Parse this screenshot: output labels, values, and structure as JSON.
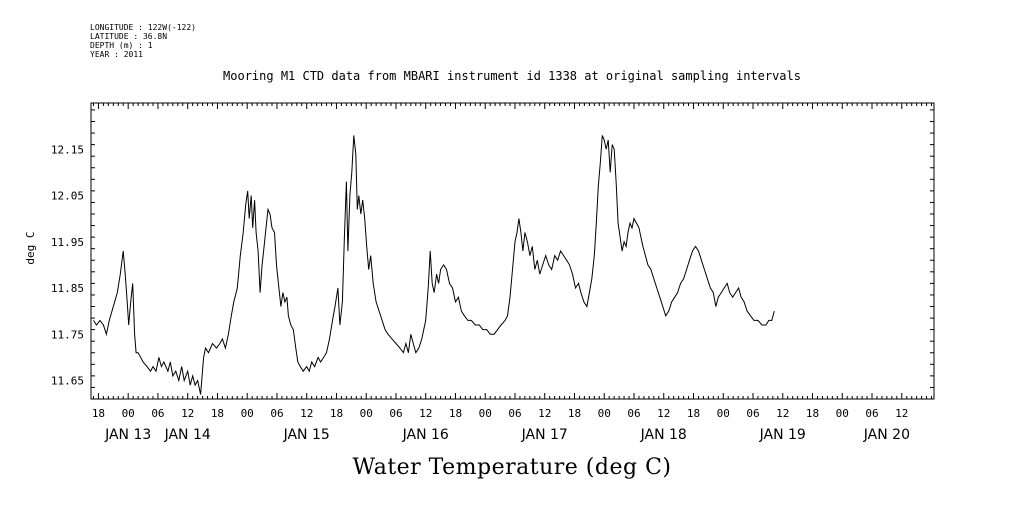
{
  "header": {
    "lines": [
      "LONGITUDE : 122W(-122)",
      "LATITUDE : 36.8N",
      "DEPTH (m) : 1",
      "YEAR : 2011"
    ]
  },
  "chart_data": {
    "type": "line",
    "title": "Mooring M1 CTD data from MBARI instrument id 1338 at original sampling intervals",
    "xlabel": "Water Temperature (deg C)",
    "ylabel": "deg C",
    "ylim": [
      11.61,
      12.25
    ],
    "yticks": [
      11.65,
      11.75,
      11.85,
      11.95,
      12.05,
      12.15
    ],
    "ytick_labels": [
      "11.65",
      "11.75",
      "11.85",
      "11.95",
      "12.05",
      "12.15"
    ],
    "x_unit": "hours since JAN 12 00:00 (2011)",
    "xlim": [
      16.5,
      186.5
    ],
    "hour_ticks": [
      {
        "h": 18,
        "label": "18"
      },
      {
        "h": 24,
        "label": "00"
      },
      {
        "h": 30,
        "label": "06"
      },
      {
        "h": 36,
        "label": "12"
      },
      {
        "h": 42,
        "label": "18"
      },
      {
        "h": 48,
        "label": "00"
      },
      {
        "h": 54,
        "label": "06"
      },
      {
        "h": 60,
        "label": "12"
      },
      {
        "h": 66,
        "label": "18"
      },
      {
        "h": 72,
        "label": "00"
      },
      {
        "h": 78,
        "label": "06"
      },
      {
        "h": 84,
        "label": "12"
      },
      {
        "h": 90,
        "label": "18"
      },
      {
        "h": 96,
        "label": "00"
      },
      {
        "h": 102,
        "label": "06"
      },
      {
        "h": 108,
        "label": "12"
      },
      {
        "h": 114,
        "label": "18"
      },
      {
        "h": 120,
        "label": "00"
      },
      {
        "h": 126,
        "label": "06"
      },
      {
        "h": 132,
        "label": "12"
      },
      {
        "h": 138,
        "label": "18"
      },
      {
        "h": 144,
        "label": "00"
      },
      {
        "h": 150,
        "label": "06"
      },
      {
        "h": 156,
        "label": "12"
      },
      {
        "h": 162,
        "label": "18"
      },
      {
        "h": 168,
        "label": "00"
      },
      {
        "h": 174,
        "label": "06"
      },
      {
        "h": 180,
        "label": "12"
      }
    ],
    "day_labels": [
      {
        "h": 24,
        "label": "JAN 13"
      },
      {
        "h": 36,
        "label": "JAN 14"
      },
      {
        "h": 60,
        "label": "JAN 15"
      },
      {
        "h": 84,
        "label": "JAN 16"
      },
      {
        "h": 108,
        "label": "JAN 17"
      },
      {
        "h": 132,
        "label": "JAN 18"
      },
      {
        "h": 156,
        "label": "JAN 19"
      },
      {
        "h": 177,
        "label": "JAN 20"
      }
    ],
    "grid": false,
    "series": [
      {
        "points": [
          [
            17.0,
            11.78
          ],
          [
            17.6,
            11.77
          ],
          [
            18.3,
            11.78
          ],
          [
            19.0,
            11.77
          ],
          [
            19.6,
            11.75
          ],
          [
            20.2,
            11.78
          ],
          [
            21.0,
            11.81
          ],
          [
            21.8,
            11.84
          ],
          [
            22.4,
            11.88
          ],
          [
            23.0,
            11.93
          ],
          [
            23.4,
            11.88
          ],
          [
            23.8,
            11.82
          ],
          [
            24.1,
            11.77
          ],
          [
            24.5,
            11.82
          ],
          [
            24.9,
            11.86
          ],
          [
            25.3,
            11.75
          ],
          [
            25.6,
            11.71
          ],
          [
            26.0,
            11.71
          ],
          [
            27.0,
            11.69
          ],
          [
            27.8,
            11.68
          ],
          [
            28.5,
            11.67
          ],
          [
            29.0,
            11.68
          ],
          [
            29.6,
            11.67
          ],
          [
            30.2,
            11.7
          ],
          [
            30.7,
            11.68
          ],
          [
            31.2,
            11.69
          ],
          [
            32.0,
            11.67
          ],
          [
            32.5,
            11.69
          ],
          [
            33.0,
            11.66
          ],
          [
            33.6,
            11.67
          ],
          [
            34.2,
            11.65
          ],
          [
            34.8,
            11.68
          ],
          [
            35.3,
            11.65
          ],
          [
            36.0,
            11.67
          ],
          [
            36.5,
            11.64
          ],
          [
            37.0,
            11.66
          ],
          [
            37.5,
            11.64
          ],
          [
            38.0,
            11.65
          ],
          [
            38.6,
            11.62
          ],
          [
            39.2,
            11.7
          ],
          [
            39.6,
            11.72
          ],
          [
            40.2,
            11.71
          ],
          [
            41.0,
            11.73
          ],
          [
            41.8,
            11.72
          ],
          [
            42.5,
            11.73
          ],
          [
            43.0,
            11.74
          ],
          [
            43.6,
            11.72
          ],
          [
            44.2,
            11.75
          ],
          [
            44.8,
            11.79
          ],
          [
            45.3,
            11.82
          ],
          [
            46.0,
            11.85
          ],
          [
            46.6,
            11.92
          ],
          [
            47.2,
            11.97
          ],
          [
            47.7,
            12.03
          ],
          [
            48.1,
            12.06
          ],
          [
            48.4,
            12.0
          ],
          [
            48.8,
            12.05
          ],
          [
            49.1,
            11.98
          ],
          [
            49.5,
            12.04
          ],
          [
            49.8,
            11.97
          ],
          [
            50.2,
            11.93
          ],
          [
            50.6,
            11.84
          ],
          [
            51.0,
            11.9
          ],
          [
            51.4,
            11.94
          ],
          [
            51.8,
            11.98
          ],
          [
            52.2,
            12.02
          ],
          [
            52.6,
            12.01
          ],
          [
            53.0,
            11.98
          ],
          [
            53.5,
            11.97
          ],
          [
            53.9,
            11.9
          ],
          [
            54.3,
            11.86
          ],
          [
            54.8,
            11.81
          ],
          [
            55.2,
            11.84
          ],
          [
            55.6,
            11.82
          ],
          [
            56.0,
            11.83
          ],
          [
            56.3,
            11.79
          ],
          [
            56.8,
            11.77
          ],
          [
            57.3,
            11.76
          ],
          [
            57.8,
            11.72
          ],
          [
            58.2,
            11.69
          ],
          [
            58.7,
            11.68
          ],
          [
            59.3,
            11.67
          ],
          [
            60.0,
            11.68
          ],
          [
            60.5,
            11.67
          ],
          [
            61.0,
            11.69
          ],
          [
            61.6,
            11.68
          ],
          [
            62.3,
            11.7
          ],
          [
            62.8,
            11.69
          ],
          [
            63.4,
            11.7
          ],
          [
            64.0,
            11.71
          ],
          [
            64.6,
            11.74
          ],
          [
            65.2,
            11.78
          ],
          [
            65.7,
            11.81
          ],
          [
            66.3,
            11.85
          ],
          [
            66.7,
            11.77
          ],
          [
            67.2,
            11.82
          ],
          [
            67.6,
            11.96
          ],
          [
            68.0,
            12.08
          ],
          [
            68.3,
            11.93
          ],
          [
            68.7,
            12.05
          ],
          [
            69.1,
            12.1
          ],
          [
            69.5,
            12.18
          ],
          [
            69.9,
            12.14
          ],
          [
            70.2,
            12.02
          ],
          [
            70.5,
            12.05
          ],
          [
            70.9,
            12.01
          ],
          [
            71.3,
            12.04
          ],
          [
            71.7,
            12.0
          ],
          [
            72.1,
            11.94
          ],
          [
            72.5,
            11.89
          ],
          [
            72.9,
            11.92
          ],
          [
            73.4,
            11.86
          ],
          [
            74.0,
            11.82
          ],
          [
            74.6,
            11.8
          ],
          [
            75.2,
            11.78
          ],
          [
            75.8,
            11.76
          ],
          [
            76.4,
            11.75
          ],
          [
            77.2,
            11.74
          ],
          [
            78.0,
            11.73
          ],
          [
            78.8,
            11.72
          ],
          [
            79.5,
            11.71
          ],
          [
            80.0,
            11.73
          ],
          [
            80.5,
            11.71
          ],
          [
            81.0,
            11.75
          ],
          [
            81.5,
            11.73
          ],
          [
            82.0,
            11.71
          ],
          [
            82.6,
            11.72
          ],
          [
            83.2,
            11.74
          ],
          [
            84.0,
            11.78
          ],
          [
            84.5,
            11.85
          ],
          [
            84.9,
            11.93
          ],
          [
            85.3,
            11.86
          ],
          [
            85.7,
            11.84
          ],
          [
            86.2,
            11.88
          ],
          [
            86.6,
            11.86
          ],
          [
            87.0,
            11.89
          ],
          [
            87.6,
            11.9
          ],
          [
            88.2,
            11.89
          ],
          [
            88.8,
            11.86
          ],
          [
            89.4,
            11.85
          ],
          [
            90.0,
            11.82
          ],
          [
            90.6,
            11.83
          ],
          [
            91.2,
            11.8
          ],
          [
            91.8,
            11.79
          ],
          [
            92.5,
            11.78
          ],
          [
            93.2,
            11.78
          ],
          [
            94.0,
            11.77
          ],
          [
            94.8,
            11.77
          ],
          [
            95.5,
            11.76
          ],
          [
            96.3,
            11.76
          ],
          [
            97.0,
            11.75
          ],
          [
            97.8,
            11.75
          ],
          [
            98.5,
            11.76
          ],
          [
            99.2,
            11.77
          ],
          [
            100.0,
            11.78
          ],
          [
            100.5,
            11.79
          ],
          [
            101.0,
            11.83
          ],
          [
            101.5,
            11.89
          ],
          [
            102.0,
            11.95
          ],
          [
            102.4,
            11.97
          ],
          [
            102.8,
            12.0
          ],
          [
            103.2,
            11.97
          ],
          [
            103.6,
            11.93
          ],
          [
            104.0,
            11.97
          ],
          [
            104.5,
            11.95
          ],
          [
            105.0,
            11.92
          ],
          [
            105.5,
            11.94
          ],
          [
            106.0,
            11.89
          ],
          [
            106.5,
            11.91
          ],
          [
            107.0,
            11.88
          ],
          [
            107.6,
            11.9
          ],
          [
            108.2,
            11.92
          ],
          [
            108.8,
            11.9
          ],
          [
            109.4,
            11.89
          ],
          [
            110.0,
            11.92
          ],
          [
            110.6,
            11.91
          ],
          [
            111.2,
            11.93
          ],
          [
            111.8,
            11.92
          ],
          [
            112.4,
            11.91
          ],
          [
            113.0,
            11.9
          ],
          [
            113.6,
            11.88
          ],
          [
            114.2,
            11.85
          ],
          [
            114.8,
            11.86
          ],
          [
            115.3,
            11.84
          ],
          [
            115.9,
            11.82
          ],
          [
            116.5,
            11.81
          ],
          [
            117.0,
            11.84
          ],
          [
            117.5,
            11.87
          ],
          [
            118.0,
            11.92
          ],
          [
            118.4,
            11.99
          ],
          [
            118.8,
            12.07
          ],
          [
            119.2,
            12.12
          ],
          [
            119.6,
            12.18
          ],
          [
            120.0,
            12.17
          ],
          [
            120.4,
            12.15
          ],
          [
            120.8,
            12.17
          ],
          [
            121.2,
            12.1
          ],
          [
            121.6,
            12.16
          ],
          [
            122.0,
            12.15
          ],
          [
            122.4,
            12.08
          ],
          [
            122.8,
            11.99
          ],
          [
            123.2,
            11.96
          ],
          [
            123.6,
            11.93
          ],
          [
            124.0,
            11.95
          ],
          [
            124.4,
            11.94
          ],
          [
            124.8,
            11.97
          ],
          [
            125.2,
            11.99
          ],
          [
            125.6,
            11.98
          ],
          [
            126.0,
            12.0
          ],
          [
            126.5,
            11.99
          ],
          [
            127.0,
            11.98
          ],
          [
            127.4,
            11.96
          ],
          [
            127.8,
            11.94
          ],
          [
            128.3,
            11.92
          ],
          [
            128.8,
            11.9
          ],
          [
            129.4,
            11.89
          ],
          [
            130.0,
            11.87
          ],
          [
            130.6,
            11.85
          ],
          [
            131.2,
            11.83
          ],
          [
            131.8,
            11.81
          ],
          [
            132.4,
            11.79
          ],
          [
            133.0,
            11.8
          ],
          [
            133.6,
            11.82
          ],
          [
            134.2,
            11.83
          ],
          [
            134.8,
            11.84
          ],
          [
            135.4,
            11.86
          ],
          [
            136.0,
            11.87
          ],
          [
            136.6,
            11.89
          ],
          [
            137.2,
            11.91
          ],
          [
            137.8,
            11.93
          ],
          [
            138.4,
            11.94
          ],
          [
            139.0,
            11.93
          ],
          [
            139.6,
            11.91
          ],
          [
            140.2,
            11.89
          ],
          [
            140.8,
            11.87
          ],
          [
            141.4,
            11.85
          ],
          [
            142.0,
            11.84
          ],
          [
            142.5,
            11.81
          ],
          [
            143.0,
            11.83
          ],
          [
            143.6,
            11.84
          ],
          [
            144.2,
            11.85
          ],
          [
            144.8,
            11.86
          ],
          [
            145.3,
            11.84
          ],
          [
            145.9,
            11.83
          ],
          [
            146.5,
            11.84
          ],
          [
            147.1,
            11.85
          ],
          [
            147.6,
            11.83
          ],
          [
            148.2,
            11.82
          ],
          [
            148.8,
            11.8
          ],
          [
            149.5,
            11.79
          ],
          [
            150.2,
            11.78
          ],
          [
            151.0,
            11.78
          ],
          [
            151.8,
            11.77
          ],
          [
            152.6,
            11.77
          ],
          [
            153.2,
            11.78
          ],
          [
            153.8,
            11.78
          ],
          [
            154.3,
            11.8
          ]
        ]
      }
    ]
  }
}
